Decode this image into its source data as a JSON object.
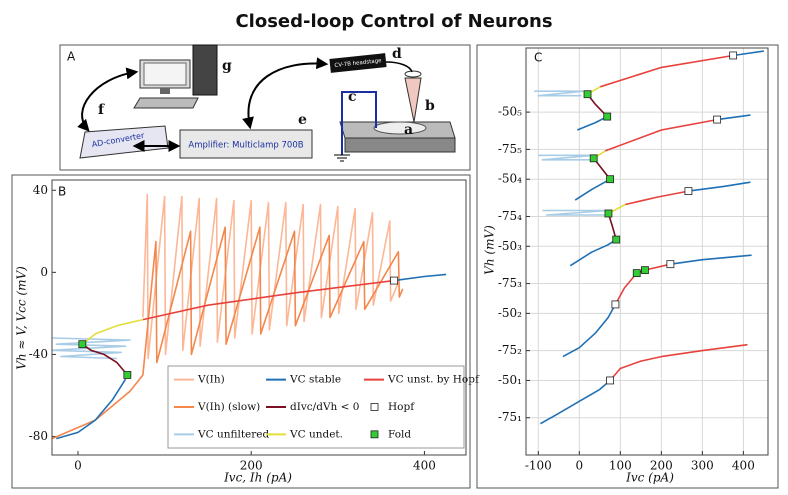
{
  "title": "Closed-loop Control of Neurons",
  "diagram": {
    "label": "A",
    "ad_converter": "AD-converter",
    "amplifier": "Amplifier: Multiclamp 700B",
    "headstage": "CV-7B headstage",
    "letters": [
      "a",
      "b",
      "c",
      "d",
      "e",
      "f",
      "g"
    ]
  },
  "chart_data": [
    {
      "type": "line",
      "label": "B",
      "x_label": "Ivc, Ih (pA)",
      "y_label": "Vh ≈ V, Vcc (mV)",
      "xlim": [
        -30,
        448
      ],
      "ylim": [
        -89,
        45
      ],
      "xticks": [
        0,
        200,
        400
      ],
      "yticks": [
        -80,
        -40,
        0,
        40
      ],
      "grid": false,
      "legend": "lower right",
      "series": [
        {
          "name": "V(Ih)",
          "color": "#fcb797",
          "x": [
            75,
            80,
            81,
            100,
            101,
            120,
            121,
            140,
            141,
            160,
            161,
            180,
            181,
            200,
            201,
            220,
            221,
            240,
            241,
            260,
            261,
            280,
            281,
            300,
            301,
            320,
            321,
            340,
            341,
            360,
            361,
            370
          ],
          "values": [
            -22,
            38,
            -42,
            37,
            -40,
            37,
            -38,
            36,
            -36,
            36,
            -34,
            35,
            -32,
            35,
            -30,
            34,
            -28,
            34,
            -26,
            33,
            -24,
            33,
            -22,
            32,
            -20,
            31,
            -18,
            29,
            -16,
            25,
            -14,
            -5
          ]
        },
        {
          "name": "V(Ih) (slow)",
          "color": "#f4874c",
          "x": [
            -30,
            20,
            60,
            75,
            90,
            91,
            130,
            131,
            170,
            171,
            210,
            211,
            250,
            251,
            290,
            291,
            330,
            331,
            370,
            371,
            375
          ],
          "values": [
            -81,
            -72,
            -58,
            -50,
            15,
            -44,
            20,
            -40,
            22,
            -35,
            22,
            -30,
            20,
            -26,
            18,
            -22,
            15,
            -18,
            10,
            -12,
            -8
          ]
        },
        {
          "name": "VC unfiltered",
          "color": "#a9cce6",
          "x": [
            -30,
            60,
            -25,
            55,
            -30,
            50,
            -20,
            45
          ],
          "values": [
            -32,
            -33,
            -35,
            -36,
            -38,
            -39,
            -41,
            -42
          ]
        },
        {
          "name": "VC stable",
          "color": "#1f70b5",
          "x": [
            -25,
            0,
            20,
            40,
            55,
            null,
            365,
            400,
            425
          ],
          "values": [
            -81,
            -78,
            -72,
            -62,
            -52,
            null,
            -4,
            -2,
            -1
          ]
        },
        {
          "name": "dIvc/dVh < 0",
          "color": "#7a1020",
          "x": [
            57,
            45,
            30,
            15,
            5
          ],
          "values": [
            -50,
            -44,
            -40,
            -38,
            -35
          ]
        },
        {
          "name": "VC undet.",
          "color": "#e4de3a",
          "x": [
            5,
            20,
            45,
            75
          ],
          "values": [
            -35,
            -30,
            -26,
            -23
          ]
        },
        {
          "name": "VC unst. by Hopf",
          "color": "#e8413c",
          "x": [
            75,
            150,
            250,
            365
          ],
          "values": [
            -23,
            -16,
            -10,
            -4
          ]
        },
        {
          "name": "Hopf",
          "color": "#ffffff",
          "marker": "square",
          "x": [
            365
          ],
          "values": [
            -4
          ]
        },
        {
          "name": "Fold",
          "color": "#33cc33",
          "marker": "square",
          "x": [
            5,
            57
          ],
          "values": [
            -35,
            -50
          ]
        }
      ]
    },
    {
      "type": "line",
      "label": "C",
      "x_label": "Ivc (pA)",
      "y_label": "Vh (mV)",
      "xlim": [
        -130,
        460
      ],
      "ylim": [
        -100,
        173
      ],
      "xticks": [
        -100,
        0,
        100,
        200,
        300,
        400
      ],
      "yticks": [
        {
          "value": -75,
          "label": "-75₁"
        },
        {
          "value": -50,
          "label": "-50₁"
        },
        {
          "value": -30,
          "label": "-75₂"
        },
        {
          "value": -5,
          "label": "-50₂"
        },
        {
          "value": 15,
          "label": "-75₃"
        },
        {
          "value": 40,
          "label": "-50₃"
        },
        {
          "value": 60,
          "label": "-75₄"
        },
        {
          "value": 85,
          "label": "-50₄"
        },
        {
          "value": 105,
          "label": "-75₅"
        },
        {
          "value": 130,
          "label": "-50₅"
        }
      ],
      "grid": true,
      "series": [
        {
          "color": "#a9cce6",
          "x": [
            -110,
            10,
            -100,
            5,
            null,
            -90,
            70,
            -80,
            65,
            null,
            -100,
            35,
            -90,
            30
          ],
          "values": [
            144,
            144,
            141,
            141,
            null,
            64,
            64,
            61,
            61,
            null,
            101,
            101,
            98,
            98
          ]
        },
        {
          "color": "#1f70b5",
          "x": [
            -95,
            -50,
            0,
            50,
            75,
            null,
            -40,
            0,
            40,
            70,
            88,
            null,
            222,
            300,
            420,
            null,
            -22,
            30,
            70,
            90,
            null,
            266,
            350,
            417,
            null,
            -10,
            30,
            75,
            null,
            336,
            417,
            null,
            -5,
            40,
            68,
            null,
            375,
            450
          ],
          "values": [
            -79,
            -72,
            -64,
            -56,
            -50,
            null,
            -34,
            -28,
            -18,
            -8,
            1,
            null,
            28,
            31,
            34,
            null,
            27,
            36,
            41,
            44.5,
            null,
            77,
            80,
            83,
            null,
            71,
            78,
            85,
            null,
            125,
            128,
            null,
            118,
            123,
            127,
            null,
            168,
            171
          ]
        },
        {
          "color": "#e8413c",
          "x": [
            75,
            100,
            150,
            200,
            300,
            410,
            null,
            88,
            110,
            140,
            null,
            160,
            222,
            null,
            112,
            190,
            266,
            null,
            63,
            200,
            336,
            null,
            51,
            200,
            375
          ],
          "values": [
            -50,
            -42,
            -37,
            -34,
            -30,
            -26,
            null,
            1,
            12,
            22,
            null,
            24,
            28,
            null,
            68,
            73,
            77,
            null,
            104,
            118,
            125,
            null,
            147,
            160,
            168
          ]
        },
        {
          "color": "#7a1020",
          "x": [
            140,
            160,
            null,
            90,
            80,
            71,
            null,
            75,
            55,
            35,
            null,
            68,
            40,
            20
          ],
          "values": [
            22,
            24,
            null,
            44.5,
            54,
            62,
            null,
            85,
            92,
            99,
            null,
            127,
            135,
            142
          ]
        },
        {
          "color": "#e4de3a",
          "x": [
            71,
            112,
            null,
            35,
            63,
            null,
            20,
            51
          ],
          "values": [
            62,
            68,
            null,
            99,
            104,
            null,
            142,
            147
          ]
        },
        {
          "color": "#ffffff",
          "marker": "square",
          "x": [
            75,
            88,
            222,
            266,
            336,
            375
          ],
          "values": [
            -50,
            1,
            28,
            77,
            125,
            168
          ]
        },
        {
          "color": "#33cc33",
          "marker": "square",
          "x": [
            140,
            160,
            90,
            71,
            75,
            35,
            68,
            20
          ],
          "values": [
            22,
            24,
            44.5,
            62,
            85,
            99,
            127,
            142
          ]
        }
      ]
    }
  ]
}
